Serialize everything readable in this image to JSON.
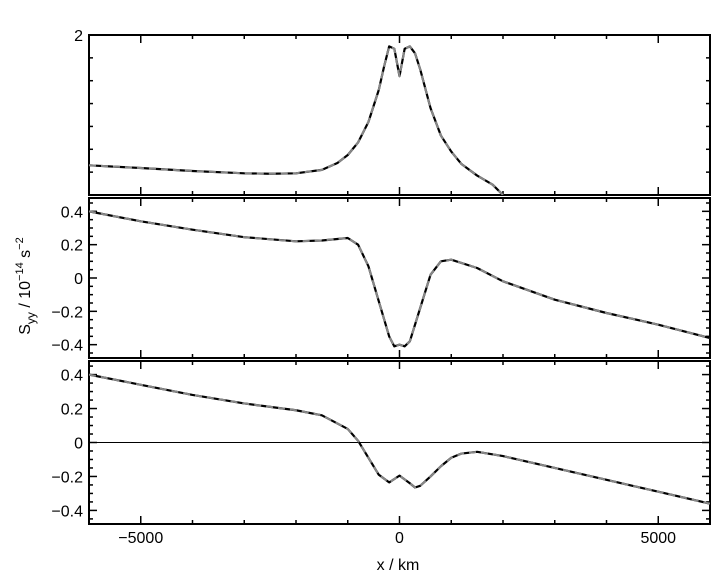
{
  "chart_data": [
    {
      "type": "line",
      "panel": "top",
      "xlim": [
        -6000,
        6000
      ],
      "ylim": [
        1.3,
        2.0
      ],
      "yticks": [
        2
      ],
      "ytick_labels": [
        "2"
      ],
      "grid": false,
      "series": [
        {
          "style": "solid",
          "x": [
            -6000,
            -5000,
            -4000,
            -3000,
            -2500,
            -2000,
            -1500,
            -1200,
            -1000,
            -800,
            -600,
            -400,
            -300,
            -200,
            -100,
            0,
            100,
            200,
            300,
            400,
            600,
            800,
            1000,
            1200,
            1500,
            1800,
            2000
          ],
          "y": [
            1.43,
            1.418,
            1.405,
            1.395,
            1.393,
            1.395,
            1.41,
            1.44,
            1.475,
            1.53,
            1.62,
            1.76,
            1.86,
            1.95,
            1.94,
            1.82,
            1.94,
            1.95,
            1.92,
            1.85,
            1.68,
            1.56,
            1.49,
            1.435,
            1.385,
            1.345,
            1.3
          ]
        },
        {
          "style": "dashed",
          "x": [
            -6000,
            -5000,
            -4000,
            -3000,
            -2500,
            -2000,
            -1500,
            -1200,
            -1000,
            -800,
            -600,
            -400,
            -300,
            -200,
            -100,
            0,
            100,
            200,
            300,
            400,
            600,
            800,
            1000,
            1200,
            1500,
            1800,
            2000
          ],
          "y": [
            1.43,
            1.418,
            1.405,
            1.395,
            1.393,
            1.395,
            1.41,
            1.44,
            1.475,
            1.53,
            1.62,
            1.76,
            1.86,
            1.95,
            1.94,
            1.82,
            1.94,
            1.95,
            1.92,
            1.85,
            1.68,
            1.56,
            1.49,
            1.435,
            1.385,
            1.345,
            1.3
          ]
        }
      ]
    },
    {
      "type": "line",
      "panel": "middle",
      "xlim": [
        -6000,
        6000
      ],
      "ylim": [
        -0.48,
        0.48
      ],
      "yticks": [
        0.4,
        0.2,
        0,
        -0.2,
        -0.4
      ],
      "ytick_labels": [
        "0.4",
        "0.2",
        "0",
        "-0.2",
        "-0.4"
      ],
      "ylabel": "S_yy / 10^-14 s^-2",
      "grid": false,
      "series": [
        {
          "style": "solid",
          "x": [
            -6000,
            -5000,
            -4000,
            -3000,
            -2000,
            -1500,
            -1000,
            -800,
            -600,
            -400,
            -200,
            -100,
            0,
            100,
            200,
            400,
            600,
            800,
            1000,
            1500,
            2000,
            3000,
            4000,
            5000,
            6000
          ],
          "y": [
            0.4,
            0.34,
            0.29,
            0.245,
            0.22,
            0.225,
            0.24,
            0.2,
            0.07,
            -0.14,
            -0.35,
            -0.41,
            -0.4,
            -0.41,
            -0.38,
            -0.18,
            0.02,
            0.1,
            0.11,
            0.06,
            -0.02,
            -0.13,
            -0.21,
            -0.28,
            -0.36
          ]
        },
        {
          "style": "dashed",
          "x": [
            -6000,
            -5000,
            -4000,
            -3000,
            -2000,
            -1500,
            -1000,
            -800,
            -600,
            -400,
            -200,
            -100,
            0,
            100,
            200,
            400,
            600,
            800,
            1000,
            1500,
            2000,
            3000,
            4000,
            5000,
            6000
          ],
          "y": [
            0.4,
            0.34,
            0.29,
            0.245,
            0.22,
            0.225,
            0.24,
            0.2,
            0.07,
            -0.14,
            -0.35,
            -0.41,
            -0.4,
            -0.41,
            -0.38,
            -0.18,
            0.02,
            0.1,
            0.11,
            0.06,
            -0.02,
            -0.13,
            -0.21,
            -0.28,
            -0.36
          ]
        }
      ]
    },
    {
      "type": "line",
      "panel": "bottom",
      "xlim": [
        -6000,
        6000
      ],
      "ylim": [
        -0.48,
        0.48
      ],
      "yticks": [
        0.4,
        0.2,
        0,
        -0.2,
        -0.4
      ],
      "ytick_labels": [
        "0.4",
        "0.2",
        "0",
        "-0.2",
        "-0.4"
      ],
      "xticks": [
        -5000,
        0,
        5000
      ],
      "xtick_labels": [
        "-5000",
        "0",
        "5000"
      ],
      "xlabel": "x / km",
      "grid": false,
      "hline": 0,
      "series": [
        {
          "style": "solid",
          "x": [
            -6000,
            -5000,
            -4000,
            -3000,
            -2000,
            -1500,
            -1000,
            -800,
            -600,
            -400,
            -200,
            0,
            200,
            300,
            400,
            600,
            800,
            1000,
            1200,
            1500,
            2000,
            3000,
            4000,
            5000,
            6000
          ],
          "y": [
            0.4,
            0.34,
            0.28,
            0.23,
            0.19,
            0.16,
            0.08,
            0.01,
            -0.09,
            -0.19,
            -0.235,
            -0.195,
            -0.24,
            -0.265,
            -0.255,
            -0.2,
            -0.14,
            -0.09,
            -0.065,
            -0.055,
            -0.08,
            -0.15,
            -0.22,
            -0.29,
            -0.36
          ]
        },
        {
          "style": "dashed",
          "x": [
            -6000,
            -5000,
            -4000,
            -3000,
            -2000,
            -1500,
            -1000,
            -800,
            -600,
            -400,
            -200,
            0,
            200,
            300,
            400,
            600,
            800,
            1000,
            1200,
            1500,
            2000,
            3000,
            4000,
            5000,
            6000
          ],
          "y": [
            0.4,
            0.34,
            0.28,
            0.23,
            0.19,
            0.16,
            0.08,
            0.01,
            -0.09,
            -0.19,
            -0.235,
            -0.195,
            -0.24,
            -0.265,
            -0.255,
            -0.2,
            -0.14,
            -0.09,
            -0.065,
            -0.055,
            -0.08,
            -0.15,
            -0.22,
            -0.29,
            -0.36
          ]
        }
      ]
    }
  ],
  "labels": {
    "ylabel_main": "S",
    "ylabel_sub": "yy",
    "ylabel_mid": " / 10",
    "ylabel_exp1": "−14",
    "ylabel_unit": " s",
    "ylabel_exp2": "−2",
    "xlabel": "x / km"
  }
}
